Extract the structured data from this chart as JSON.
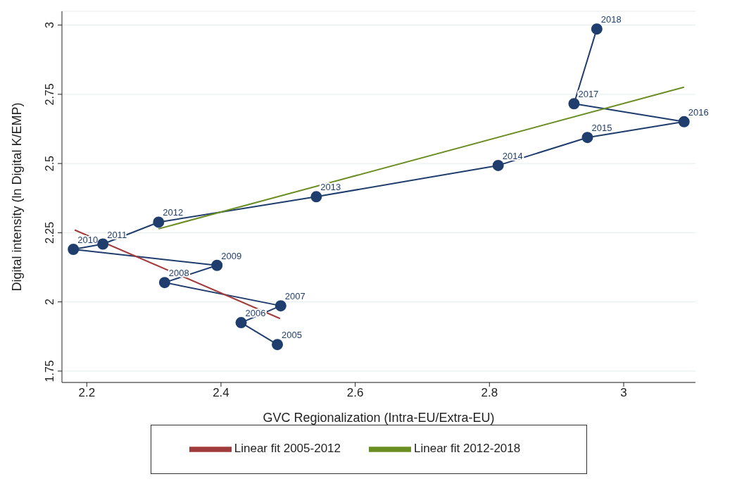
{
  "chart_data": {
    "type": "line",
    "xlabel": "GVC Regionalization (Intra-EU/Extra-EU)",
    "ylabel": "Digital intensity (ln Digital K/EMP)",
    "xlim": [
      2.163,
      3.107
    ],
    "xticks": [
      2.2,
      2.4,
      2.6,
      2.8,
      3
    ],
    "ylim": [
      1.709,
      3.05
    ],
    "yticks": [
      1.75,
      2,
      2.25,
      2.5,
      2.75,
      3
    ],
    "grid": "y",
    "legend": "bottom",
    "series": [
      {
        "color": "#1f3e6e",
        "marker": "circle",
        "x": [
          2.484,
          2.43,
          2.489,
          2.316,
          2.394,
          2.18,
          2.224,
          2.307,
          2.542,
          2.813,
          2.946,
          3.09,
          2.926,
          2.96
        ],
        "values": [
          1.846,
          1.925,
          1.986,
          2.07,
          2.132,
          2.19,
          2.209,
          2.288,
          2.38,
          2.493,
          2.594,
          2.651,
          2.716,
          2.986
        ]
      },
      {
        "name": "Linear fit 2005-2012",
        "color": "#a23b3b",
        "marker": "none",
        "x": [
          2.182,
          2.488
        ],
        "values": [
          2.26,
          1.94
        ]
      },
      {
        "name": "Linear fit 2012-2018",
        "color": "#6b8e23",
        "marker": "none",
        "x": [
          2.307,
          3.09
        ],
        "values": [
          2.264,
          2.776
        ]
      }
    ],
    "annotations": [
      {
        "text": "2005",
        "x": 2.484,
        "y": 1.846
      },
      {
        "text": "2006",
        "x": 2.43,
        "y": 1.925
      },
      {
        "text": "2007",
        "x": 2.489,
        "y": 1.986
      },
      {
        "text": "2008",
        "x": 2.316,
        "y": 2.07
      },
      {
        "text": "2009",
        "x": 2.394,
        "y": 2.132
      },
      {
        "text": "2010",
        "x": 2.18,
        "y": 2.19
      },
      {
        "text": "2011",
        "x": 2.224,
        "y": 2.209
      },
      {
        "text": "2012",
        "x": 2.307,
        "y": 2.288
      },
      {
        "text": "2013",
        "x": 2.542,
        "y": 2.38
      },
      {
        "text": "2014",
        "x": 2.813,
        "y": 2.493
      },
      {
        "text": "2015",
        "x": 2.946,
        "y": 2.594
      },
      {
        "text": "2016",
        "x": 3.09,
        "y": 2.651
      },
      {
        "text": "2017",
        "x": 2.926,
        "y": 2.716
      },
      {
        "text": "2018",
        "x": 2.96,
        "y": 2.986
      }
    ]
  }
}
